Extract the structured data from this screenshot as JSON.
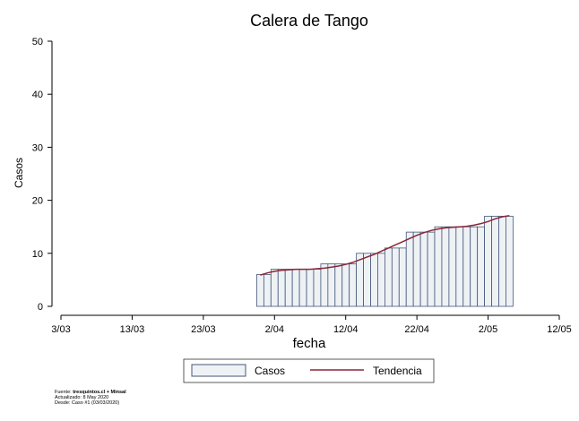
{
  "chart_data": {
    "type": "bar",
    "title": "Calera de Tango",
    "xlabel": "fecha",
    "ylabel": "Casos",
    "ylim": [
      0,
      50
    ],
    "yticks": [
      0,
      10,
      20,
      30,
      40,
      50
    ],
    "xticks": [
      {
        "date": "2020-03-03",
        "label": "3/03"
      },
      {
        "date": "2020-03-13",
        "label": "13/03"
      },
      {
        "date": "2020-03-23",
        "label": "23/03"
      },
      {
        "date": "2020-04-02",
        "label": "2/04"
      },
      {
        "date": "2020-04-12",
        "label": "12/04"
      },
      {
        "date": "2020-04-22",
        "label": "22/04"
      },
      {
        "date": "2020-05-02",
        "label": "2/05"
      },
      {
        "date": "2020-05-12",
        "label": "12/05"
      }
    ],
    "xlim": [
      "2020-03-03",
      "2020-05-12"
    ],
    "dates": [
      "2020-03-31",
      "2020-04-01",
      "2020-04-02",
      "2020-04-03",
      "2020-04-04",
      "2020-04-05",
      "2020-04-06",
      "2020-04-07",
      "2020-04-08",
      "2020-04-09",
      "2020-04-10",
      "2020-04-11",
      "2020-04-12",
      "2020-04-13",
      "2020-04-14",
      "2020-04-15",
      "2020-04-16",
      "2020-04-17",
      "2020-04-18",
      "2020-04-19",
      "2020-04-20",
      "2020-04-21",
      "2020-04-22",
      "2020-04-23",
      "2020-04-24",
      "2020-04-25",
      "2020-04-26",
      "2020-04-27",
      "2020-04-28",
      "2020-04-29",
      "2020-04-30",
      "2020-05-01",
      "2020-05-02",
      "2020-05-03",
      "2020-05-04",
      "2020-05-05"
    ],
    "series": [
      {
        "name": "Casos",
        "values": [
          6,
          6,
          7,
          7,
          7,
          7,
          7,
          7,
          7,
          8,
          8,
          8,
          8,
          8,
          10,
          10,
          10,
          10,
          11,
          11,
          11,
          14,
          14,
          14,
          14,
          15,
          15,
          15,
          15,
          15,
          15,
          15,
          17,
          17,
          17,
          17
        ]
      },
      {
        "name": "Tendencia",
        "values": [
          5.9,
          6.3,
          6.6,
          6.8,
          6.9,
          7.0,
          7.0,
          7.0,
          7.1,
          7.2,
          7.4,
          7.6,
          7.9,
          8.3,
          8.8,
          9.3,
          9.8,
          10.4,
          11.0,
          11.6,
          12.2,
          12.8,
          13.4,
          13.9,
          14.3,
          14.6,
          14.8,
          14.9,
          15.0,
          15.1,
          15.3,
          15.6,
          16.0,
          16.5,
          16.9,
          17.1
        ]
      }
    ],
    "legend": "bottom-center",
    "colors": {
      "bar_fill": "#eef2f5",
      "bar_edge": "#44577a",
      "trend": "#8b2636"
    }
  },
  "footer": {
    "line1_prefix": "Fuente: ",
    "line1_source": "tresquintos.cl + Minsal",
    "line2": "Actualizado: 8 May 2020",
    "line3": "Desde: Caso #1  (03/03/2020)"
  }
}
